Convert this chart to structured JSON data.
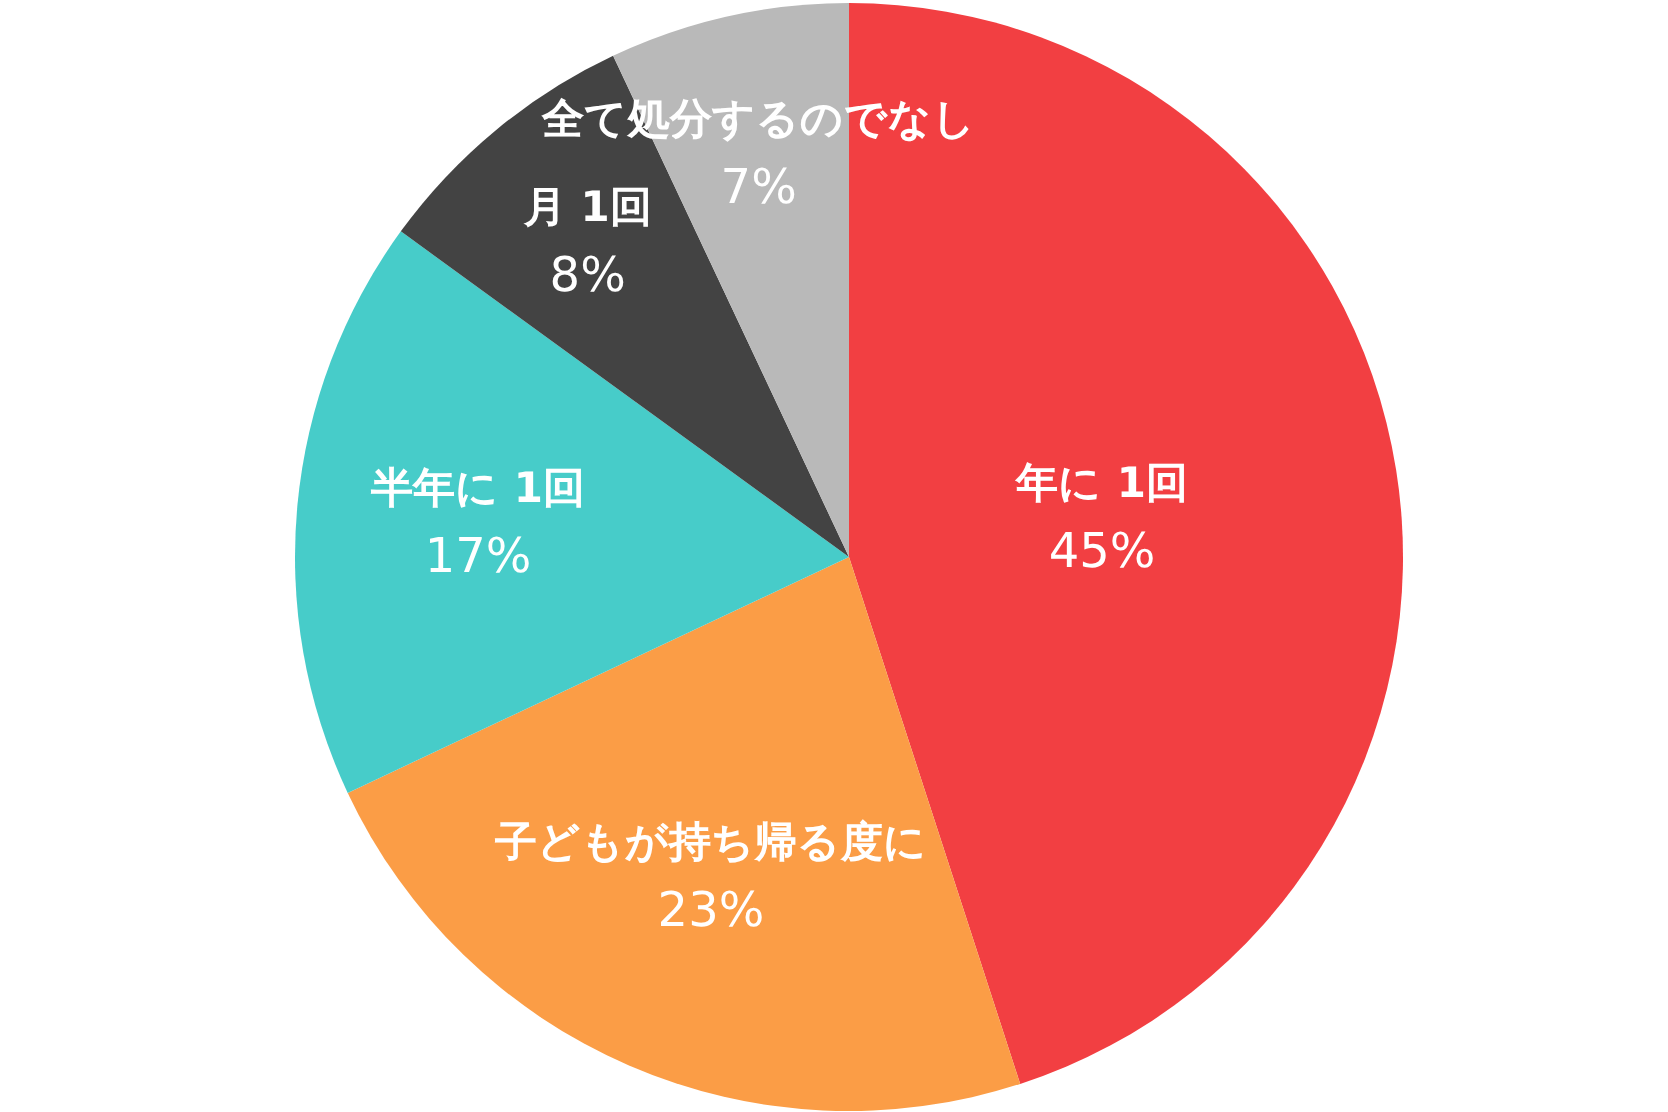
{
  "chart_data": {
    "type": "pie",
    "categories": [
      "年に 1回",
      "子どもが持ち帰る度に",
      "半年に 1回",
      "月 1回",
      "全て処分するのでなし"
    ],
    "values": [
      45,
      23,
      17,
      8,
      7
    ],
    "colors": [
      "#f23f42",
      "#fb9d46",
      "#47ccc9",
      "#434343",
      "#b9b9b9"
    ],
    "value_labels": [
      "45%",
      "23%",
      "17%",
      "8%",
      "7%"
    ]
  }
}
